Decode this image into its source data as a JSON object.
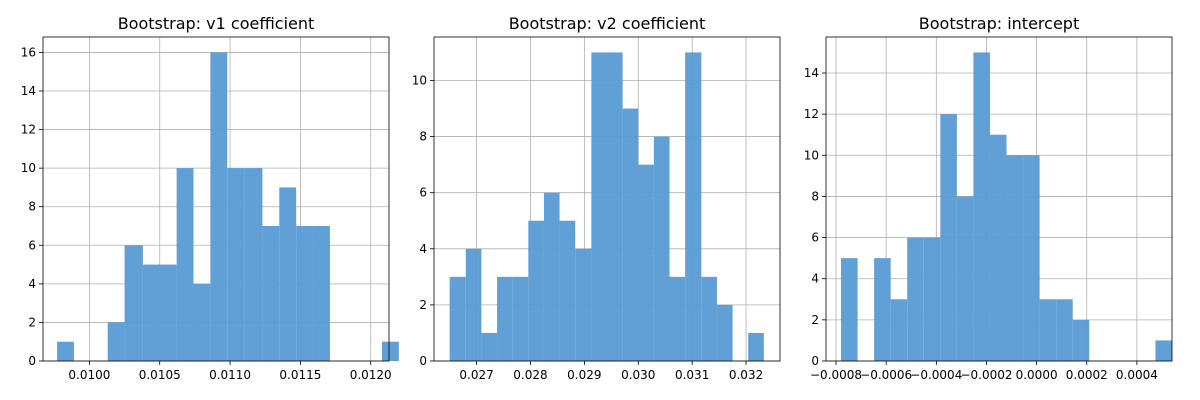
{
  "bar_color": "#5b9bd5",
  "chart_data": [
    {
      "type": "bar",
      "title": "Bootstrap: v1 coefficient",
      "xlabel": "",
      "ylabel": "",
      "grid": true,
      "xlim": [
        0.00967,
        0.01213
      ],
      "ylim": [
        0,
        16.8
      ],
      "xticks": [
        0.01,
        0.0105,
        0.011,
        0.0115,
        0.012
      ],
      "xtick_labels": [
        "0.0100",
        "0.0105",
        "0.0110",
        "0.0115",
        "0.0120"
      ],
      "yticks": [
        0,
        2,
        4,
        6,
        8,
        10,
        12,
        14,
        16
      ],
      "ytick_labels": [
        "0",
        "2",
        "4",
        "6",
        "8",
        "10",
        "12",
        "14",
        "16"
      ],
      "bins": [
        {
          "start": 0.00977,
          "end": 0.00989,
          "count": 1
        },
        {
          "start": 0.00989,
          "end": 0.01001,
          "count": 0
        },
        {
          "start": 0.01001,
          "end": 0.01013,
          "count": 0
        },
        {
          "start": 0.01013,
          "end": 0.01025,
          "count": 2
        },
        {
          "start": 0.01025,
          "end": 0.01038,
          "count": 6
        },
        {
          "start": 0.01038,
          "end": 0.0105,
          "count": 5
        },
        {
          "start": 0.0105,
          "end": 0.01062,
          "count": 5
        },
        {
          "start": 0.01062,
          "end": 0.01074,
          "count": 10
        },
        {
          "start": 0.01074,
          "end": 0.01086,
          "count": 4
        },
        {
          "start": 0.01086,
          "end": 0.01098,
          "count": 16
        },
        {
          "start": 0.01098,
          "end": 0.0111,
          "count": 10
        },
        {
          "start": 0.0111,
          "end": 0.01123,
          "count": 10
        },
        {
          "start": 0.01123,
          "end": 0.01135,
          "count": 7
        },
        {
          "start": 0.01135,
          "end": 0.01147,
          "count": 9
        },
        {
          "start": 0.01147,
          "end": 0.01159,
          "count": 7
        },
        {
          "start": 0.01159,
          "end": 0.01171,
          "count": 7
        },
        {
          "start": 0.01171,
          "end": 0.01183,
          "count": 0
        },
        {
          "start": 0.01183,
          "end": 0.01195,
          "count": 0
        },
        {
          "start": 0.01195,
          "end": 0.01208,
          "count": 0
        },
        {
          "start": 0.01208,
          "end": 0.0122,
          "count": 1
        }
      ]
    },
    {
      "type": "bar",
      "title": "Bootstrap: v2 coefficient",
      "xlabel": "",
      "ylabel": "",
      "grid": true,
      "xlim": [
        0.02621,
        0.03263
      ],
      "ylim": [
        0,
        11.55
      ],
      "xticks": [
        0.027,
        0.028,
        0.029,
        0.03,
        0.031,
        0.032
      ],
      "xtick_labels": [
        "0.027",
        "0.028",
        "0.029",
        "0.030",
        "0.031",
        "0.032"
      ],
      "yticks": [
        0,
        2,
        4,
        6,
        8,
        10
      ],
      "ytick_labels": [
        "0",
        "2",
        "4",
        "6",
        "8",
        "10"
      ],
      "bins": [
        {
          "start": 0.0265,
          "end": 0.0268,
          "count": 3
        },
        {
          "start": 0.0268,
          "end": 0.02709,
          "count": 4
        },
        {
          "start": 0.02709,
          "end": 0.02738,
          "count": 1
        },
        {
          "start": 0.02738,
          "end": 0.02767,
          "count": 3
        },
        {
          "start": 0.02767,
          "end": 0.02796,
          "count": 3
        },
        {
          "start": 0.02796,
          "end": 0.02825,
          "count": 5
        },
        {
          "start": 0.02825,
          "end": 0.02854,
          "count": 6
        },
        {
          "start": 0.02854,
          "end": 0.02883,
          "count": 5
        },
        {
          "start": 0.02883,
          "end": 0.02913,
          "count": 4
        },
        {
          "start": 0.02913,
          "end": 0.02942,
          "count": 11
        },
        {
          "start": 0.02942,
          "end": 0.02971,
          "count": 11
        },
        {
          "start": 0.02971,
          "end": 0.03,
          "count": 9
        },
        {
          "start": 0.03,
          "end": 0.03029,
          "count": 7
        },
        {
          "start": 0.03029,
          "end": 0.03058,
          "count": 8
        },
        {
          "start": 0.03058,
          "end": 0.03087,
          "count": 3
        },
        {
          "start": 0.03087,
          "end": 0.03117,
          "count": 11
        },
        {
          "start": 0.03117,
          "end": 0.03146,
          "count": 3
        },
        {
          "start": 0.03146,
          "end": 0.03175,
          "count": 2
        },
        {
          "start": 0.03175,
          "end": 0.03204,
          "count": 0
        },
        {
          "start": 0.03204,
          "end": 0.03233,
          "count": 1
        }
      ]
    },
    {
      "type": "bar",
      "title": "Bootstrap: intercept",
      "xlabel": "",
      "ylabel": "",
      "grid": true,
      "xlim": [
        -0.00084,
        0.00054
      ],
      "ylim": [
        0,
        15.75
      ],
      "xticks": [
        -0.0008,
        -0.0006,
        -0.0004,
        -0.0002,
        0.0,
        0.0002,
        0.0004
      ],
      "xtick_labels": [
        "−0.0008",
        "−0.0006",
        "−0.0004",
        "−0.0002",
        "0.0000",
        "0.0002",
        "0.0004"
      ],
      "yticks": [
        0,
        2,
        4,
        6,
        8,
        10,
        12,
        14
      ],
      "ytick_labels": [
        "0",
        "2",
        "4",
        "6",
        "8",
        "10",
        "12",
        "14"
      ],
      "bins": [
        {
          "start": -0.00078,
          "end": -0.000714,
          "count": 5
        },
        {
          "start": -0.000714,
          "end": -0.000648,
          "count": 0
        },
        {
          "start": -0.000648,
          "end": -0.000582,
          "count": 5
        },
        {
          "start": -0.000582,
          "end": -0.000516,
          "count": 3
        },
        {
          "start": -0.000516,
          "end": -0.00045,
          "count": 6
        },
        {
          "start": -0.00045,
          "end": -0.000384,
          "count": 6
        },
        {
          "start": -0.000384,
          "end": -0.000318,
          "count": 12
        },
        {
          "start": -0.000318,
          "end": -0.000252,
          "count": 8
        },
        {
          "start": -0.000252,
          "end": -0.000186,
          "count": 15
        },
        {
          "start": -0.000186,
          "end": -0.00012,
          "count": 11
        },
        {
          "start": -0.00012,
          "end": -5.4e-05,
          "count": 10
        },
        {
          "start": -5.4e-05,
          "end": 1.2e-05,
          "count": 10
        },
        {
          "start": 1.2e-05,
          "end": 7.8e-05,
          "count": 3
        },
        {
          "start": 7.8e-05,
          "end": 0.000144,
          "count": 3
        },
        {
          "start": 0.000144,
          "end": 0.00021,
          "count": 2
        },
        {
          "start": 0.00021,
          "end": 0.000276,
          "count": 0
        },
        {
          "start": 0.000276,
          "end": 0.000342,
          "count": 0
        },
        {
          "start": 0.000342,
          "end": 0.000408,
          "count": 0
        },
        {
          "start": 0.000408,
          "end": 0.000474,
          "count": 0
        },
        {
          "start": 0.000474,
          "end": 0.00054,
          "count": 1
        }
      ]
    }
  ]
}
